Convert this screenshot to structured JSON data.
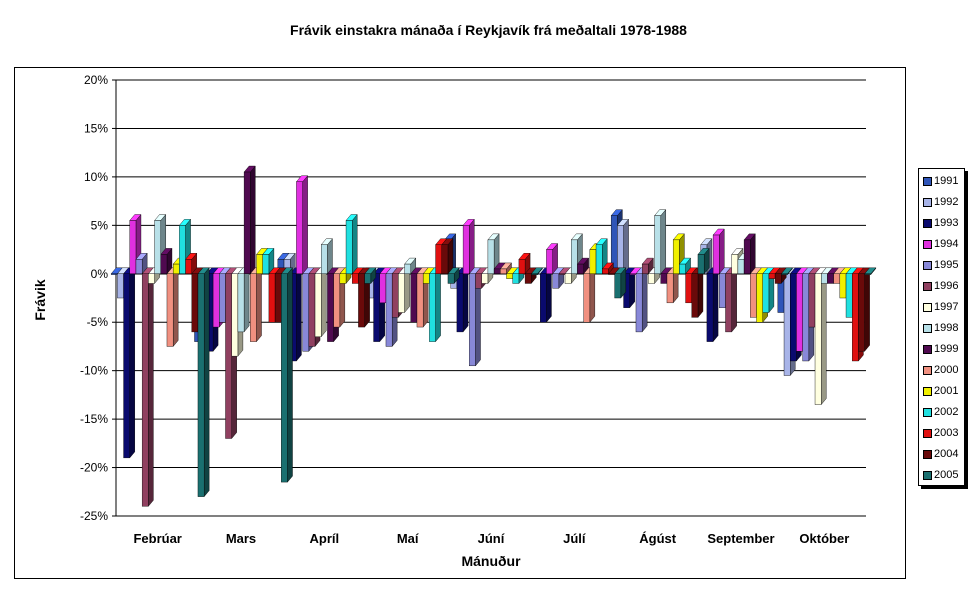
{
  "chart_data": {
    "type": "bar",
    "title": "Frávik einstakra mánaða í Reykjavík frá meðaltali 1978-1988",
    "xlabel": "Mánuður",
    "ylabel": "Frávik",
    "ylim": [
      -25,
      20
    ],
    "yticks": [
      "20%",
      "15%",
      "10%",
      "5%",
      "0%",
      "-5%",
      "-10%",
      "-15%",
      "-20%",
      "-25%"
    ],
    "grid": true,
    "legend_position": "right",
    "categories": [
      "Febrúar",
      "Mars",
      "Apríl",
      "Maí",
      "Júní",
      "Júlí",
      "Ágúst",
      "September",
      "Október"
    ],
    "series": [
      {
        "name": "1991",
        "color": "#2F55B8",
        "values": [
          0,
          -7,
          1.5,
          -1,
          3.5,
          0,
          6,
          0,
          -4
        ]
      },
      {
        "name": "1992",
        "color": "#A8B4E8",
        "values": [
          -2.5,
          -7,
          1.5,
          -2.5,
          -1.5,
          0,
          5,
          3,
          -10.5
        ]
      },
      {
        "name": "1993",
        "color": "#0A0A6E",
        "values": [
          -19,
          -8,
          -9,
          -7,
          -6,
          -5,
          -3.5,
          -7,
          -9
        ]
      },
      {
        "name": "1994",
        "color": "#E030E0",
        "values": [
          5.5,
          -5.5,
          9.5,
          -3,
          5,
          2.5,
          0,
          4,
          -8
        ]
      },
      {
        "name": "1995",
        "color": "#8888D8",
        "values": [
          1.5,
          -5,
          -8,
          -7.5,
          -9.5,
          -1.5,
          -6,
          -3.5,
          -9
        ]
      },
      {
        "name": "1996",
        "color": "#904060",
        "values": [
          -24,
          -17,
          -7.5,
          -4.5,
          -1.5,
          0,
          1,
          -6,
          -5.5
        ]
      },
      {
        "name": "1997",
        "color": "#FFFFE0",
        "values": [
          -1,
          -8.5,
          -6.5,
          -4,
          -1,
          -1,
          -1,
          2,
          -13.5
        ]
      },
      {
        "name": "1998",
        "color": "#B8E0E8",
        "values": [
          5.5,
          -6,
          3,
          1,
          3.5,
          3.5,
          6,
          1.5,
          -1
        ]
      },
      {
        "name": "1999",
        "color": "#500A50",
        "values": [
          2,
          10.5,
          -7,
          -5,
          0.5,
          1,
          -1,
          3.5,
          -1
        ]
      },
      {
        "name": "2000",
        "color": "#F09080",
        "values": [
          -7.5,
          -7,
          -5.5,
          -5.5,
          0.5,
          -5,
          -3,
          -4.5,
          -1
        ]
      },
      {
        "name": "2001",
        "color": "#F0F000",
        "values": [
          1,
          2,
          -1,
          -1,
          -0.5,
          2.5,
          3.5,
          -5,
          -2.5
        ]
      },
      {
        "name": "2002",
        "color": "#20E0E0",
        "values": [
          5,
          2,
          5.5,
          -7,
          -1,
          3,
          1,
          -4,
          -4.5
        ]
      },
      {
        "name": "2003",
        "color": "#E01010",
        "values": [
          1.5,
          -5,
          -1,
          3,
          1.5,
          0.5,
          -3,
          -0.5,
          -9
        ]
      },
      {
        "name": "2004",
        "color": "#6A0A0A",
        "values": [
          -6,
          -5,
          -5.5,
          3,
          -1,
          0,
          -4.5,
          -1,
          -8
        ]
      },
      {
        "name": "2005",
        "color": "#1A7070",
        "values": [
          -23,
          -21.5,
          -1,
          -1,
          0,
          -2.5,
          2,
          0,
          0
        ]
      }
    ]
  }
}
